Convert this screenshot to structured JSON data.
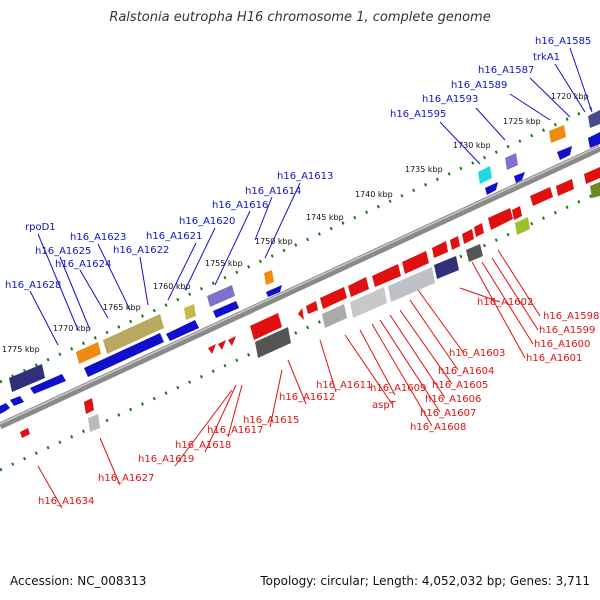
{
  "title": "Ralstonia eutropha H16 chromosome 1, complete genome",
  "footer": {
    "accession": "Accession: NC_008313",
    "stats": "Topology: circular; Length: 4,052,032 bp; Genes: 3,711"
  },
  "colors": {
    "forward": "#1010cc",
    "reverse": "#e01010",
    "backbone": "#8a8a8a",
    "ticks": "#1a7a1a"
  },
  "kbp_ticks": [
    "1720 kbp",
    "1725 kbp",
    "1730 kbp",
    "1735 kbp",
    "1740 kbp",
    "1745 kbp",
    "1750 kbp",
    "1755 kbp",
    "1760 kbp",
    "1765 kbp",
    "1770 kbp",
    "1775 kbp"
  ],
  "forward_labels": [
    "h16_A1585",
    "trkA1",
    "h16_A1587",
    "h16_A1589",
    "h16_A1593",
    "h16_A1595",
    "h16_A1613",
    "h16_A1614",
    "h16_A1616",
    "h16_A1620",
    "h16_A1621",
    "h16_A1622",
    "h16_A1623",
    "rpoD1",
    "h16_A1625",
    "h16_A1624",
    "h16_A1628"
  ],
  "reverse_labels": [
    "h16_A1598",
    "h16_A1599",
    "h16_A1600",
    "h16_A1601",
    "h16_A1602",
    "h16_A1603",
    "h16_A1604",
    "h16_A1605",
    "h16_A1606",
    "h16_A1607",
    "h16_A1608",
    "aspT",
    "h16_A1609",
    "h16_A1611",
    "h16_A1612",
    "h16_A1615",
    "h16_A1617",
    "h16_A1618",
    "h16_A1619",
    "h16_A1627",
    "h16_A1634"
  ]
}
